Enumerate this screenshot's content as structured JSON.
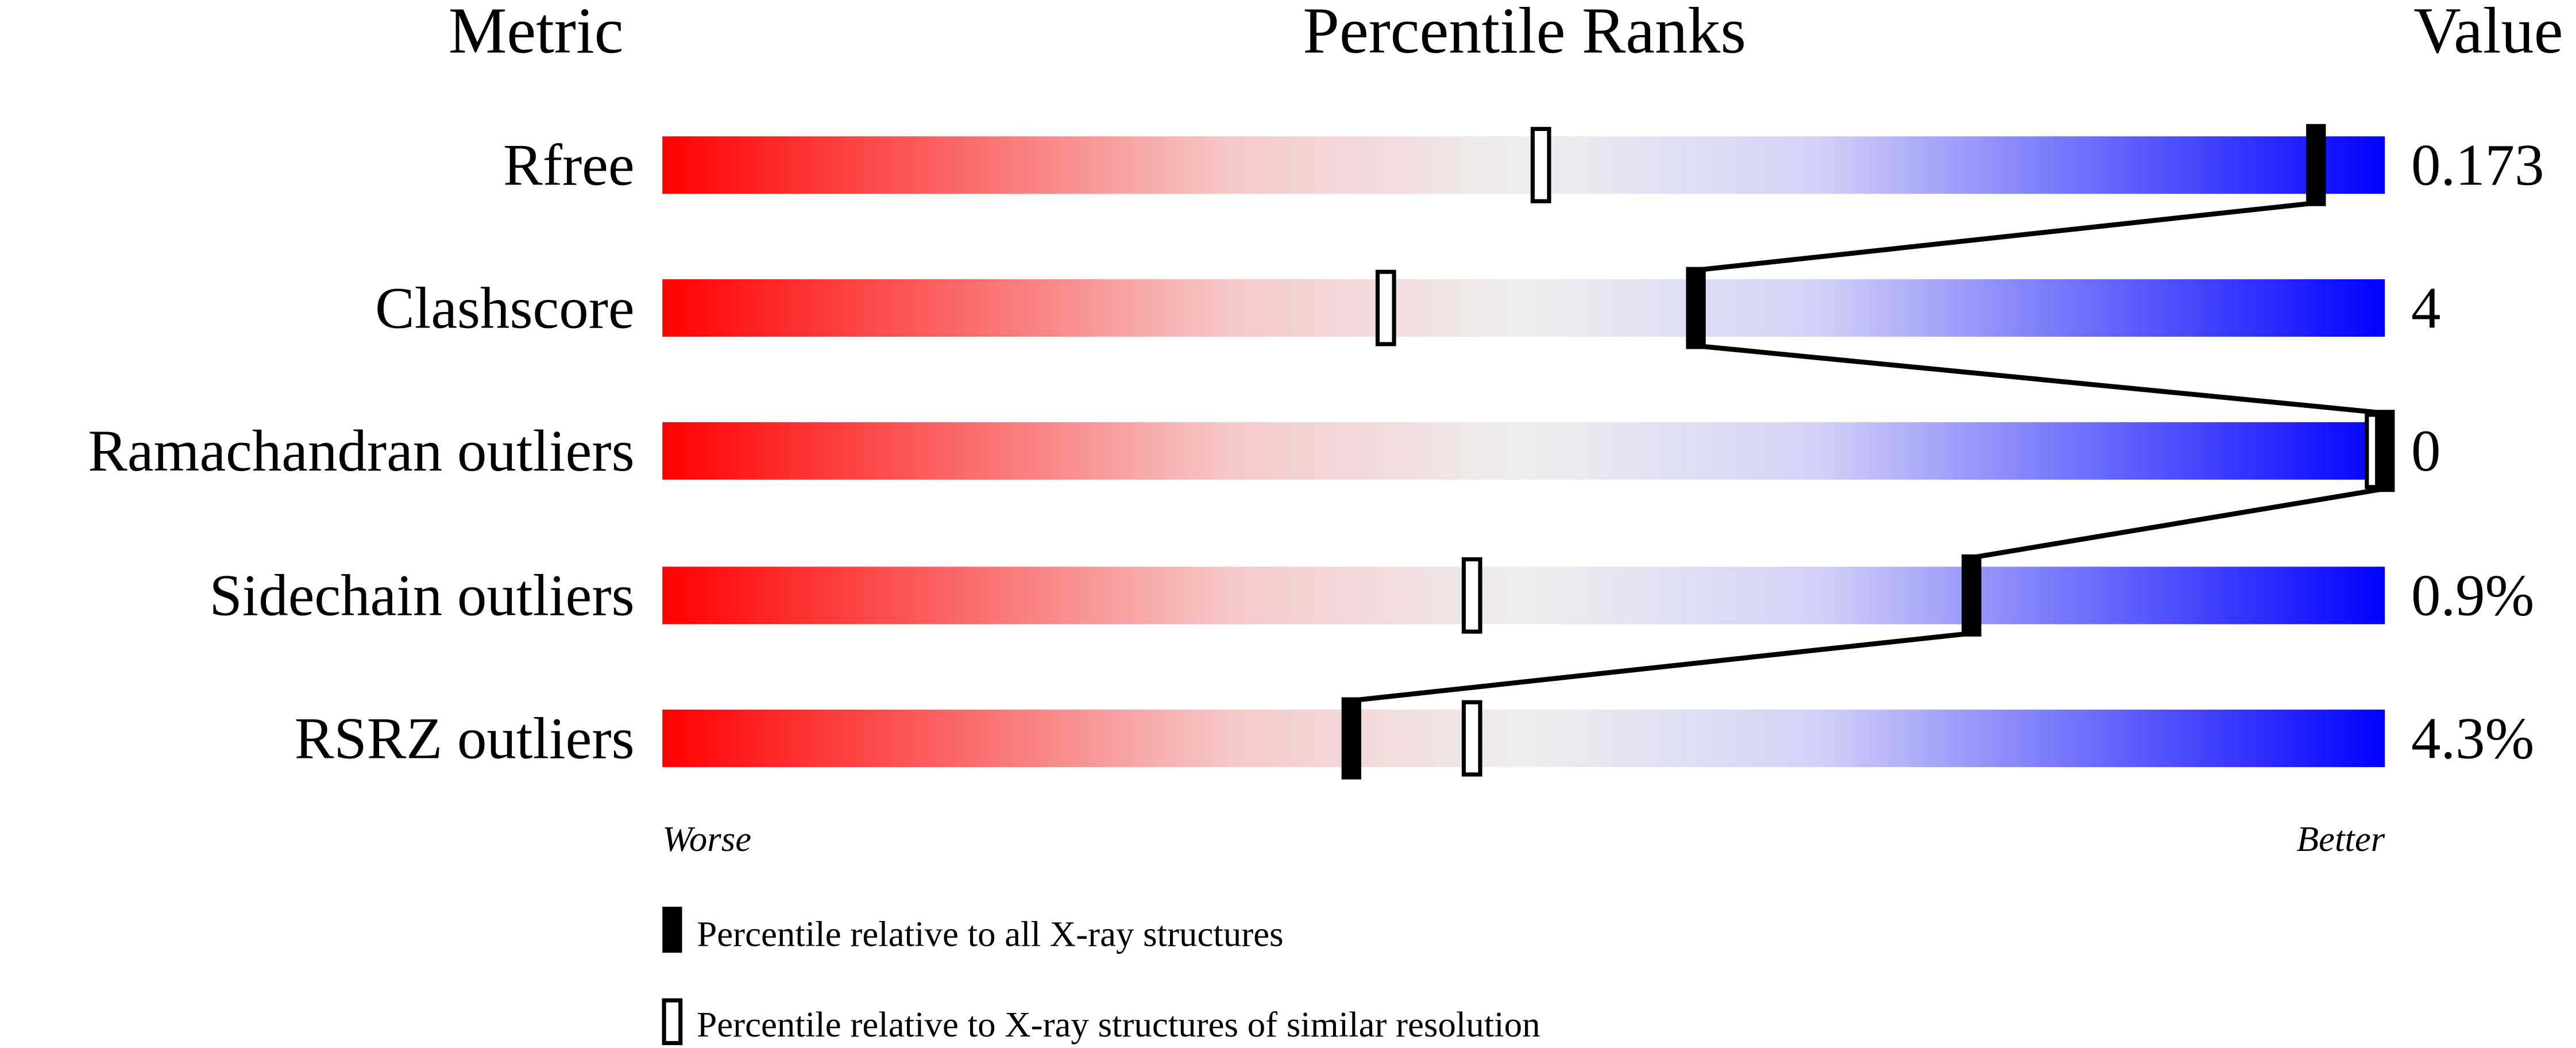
{
  "chart_data": {
    "type": "percentile-slider",
    "headers": {
      "metric": "Metric",
      "percentile": "Percentile Ranks",
      "value": "Value"
    },
    "axis": {
      "left_label": "Worse",
      "right_label": "Better",
      "range": [
        0,
        100
      ]
    },
    "gradient_colors": [
      "#ff0000",
      "#f6c8c8",
      "#eeeeee",
      "#d2d2f8",
      "#0000ff"
    ],
    "rows": [
      {
        "metric": "Rfree",
        "value": "0.173",
        "percentile_all": 96,
        "percentile_similar": 51
      },
      {
        "metric": "Clashscore",
        "value": "4",
        "percentile_all": 60,
        "percentile_similar": 42
      },
      {
        "metric": "Ramachandran outliers",
        "value": "0",
        "percentile_all": 100,
        "percentile_similar": 100
      },
      {
        "metric": "Sidechain outliers",
        "value": "0.9%",
        "percentile_all": 76,
        "percentile_similar": 47
      },
      {
        "metric": "RSRZ outliers",
        "value": "4.3%",
        "percentile_all": 40,
        "percentile_similar": 47
      }
    ],
    "legend": [
      {
        "marker": "filled",
        "label": "Percentile relative to all X-ray structures"
      },
      {
        "marker": "open",
        "label": "Percentile relative to X-ray structures of similar resolution"
      }
    ]
  }
}
